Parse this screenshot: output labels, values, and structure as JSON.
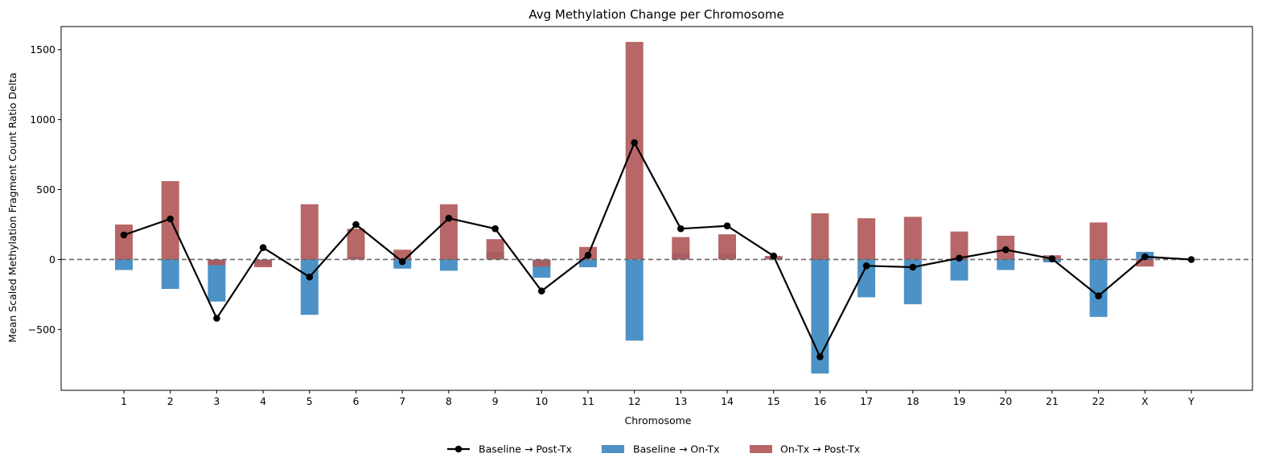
{
  "chart_data": {
    "type": "bar",
    "title": "Avg Methylation Change per Chromosome",
    "xlabel": "Chromosome",
    "ylabel": "Mean Scaled Methylation Fragment Count Ratio Delta",
    "categories": [
      "1",
      "2",
      "3",
      "4",
      "5",
      "6",
      "7",
      "8",
      "9",
      "10",
      "11",
      "12",
      "13",
      "14",
      "15",
      "16",
      "17",
      "18",
      "19",
      "20",
      "21",
      "22",
      "X",
      "Y"
    ],
    "ylim": [
      -935,
      1665
    ],
    "yticks": [
      -500,
      0,
      500,
      1000,
      1500
    ],
    "ytick_labels": [
      "−500",
      "0",
      "500",
      "1000",
      "1500"
    ],
    "reference_line": 0,
    "series": [
      {
        "name": "Baseline → On-Tx",
        "kind": "bar",
        "color": "#3a86c0",
        "values": [
          -75,
          -210,
          -300,
          -40,
          -395,
          20,
          -65,
          -80,
          55,
          -130,
          -55,
          -580,
          45,
          40,
          10,
          -815,
          -270,
          -320,
          -150,
          -75,
          -20,
          -410,
          55,
          0
        ]
      },
      {
        "name": "On-Tx → Post-Tx",
        "kind": "bar",
        "color": "#b15a5a",
        "values": [
          250,
          560,
          -40,
          -55,
          395,
          220,
          70,
          395,
          145,
          -50,
          90,
          1555,
          160,
          180,
          25,
          330,
          295,
          305,
          200,
          170,
          30,
          265,
          -50,
          0
        ]
      },
      {
        "name": "Baseline → Post-Tx",
        "kind": "line",
        "color": "#000000",
        "values": [
          175,
          290,
          -420,
          85,
          -125,
          250,
          -15,
          295,
          220,
          -225,
          30,
          835,
          220,
          240,
          25,
          -695,
          -45,
          -55,
          10,
          70,
          5,
          -260,
          20,
          0
        ]
      }
    ],
    "legend": {
      "placement": "bottom-center",
      "entries": [
        "Baseline → Post-Tx",
        "Baseline → On-Tx",
        "On-Tx → Post-Tx"
      ]
    },
    "grid": false
  }
}
